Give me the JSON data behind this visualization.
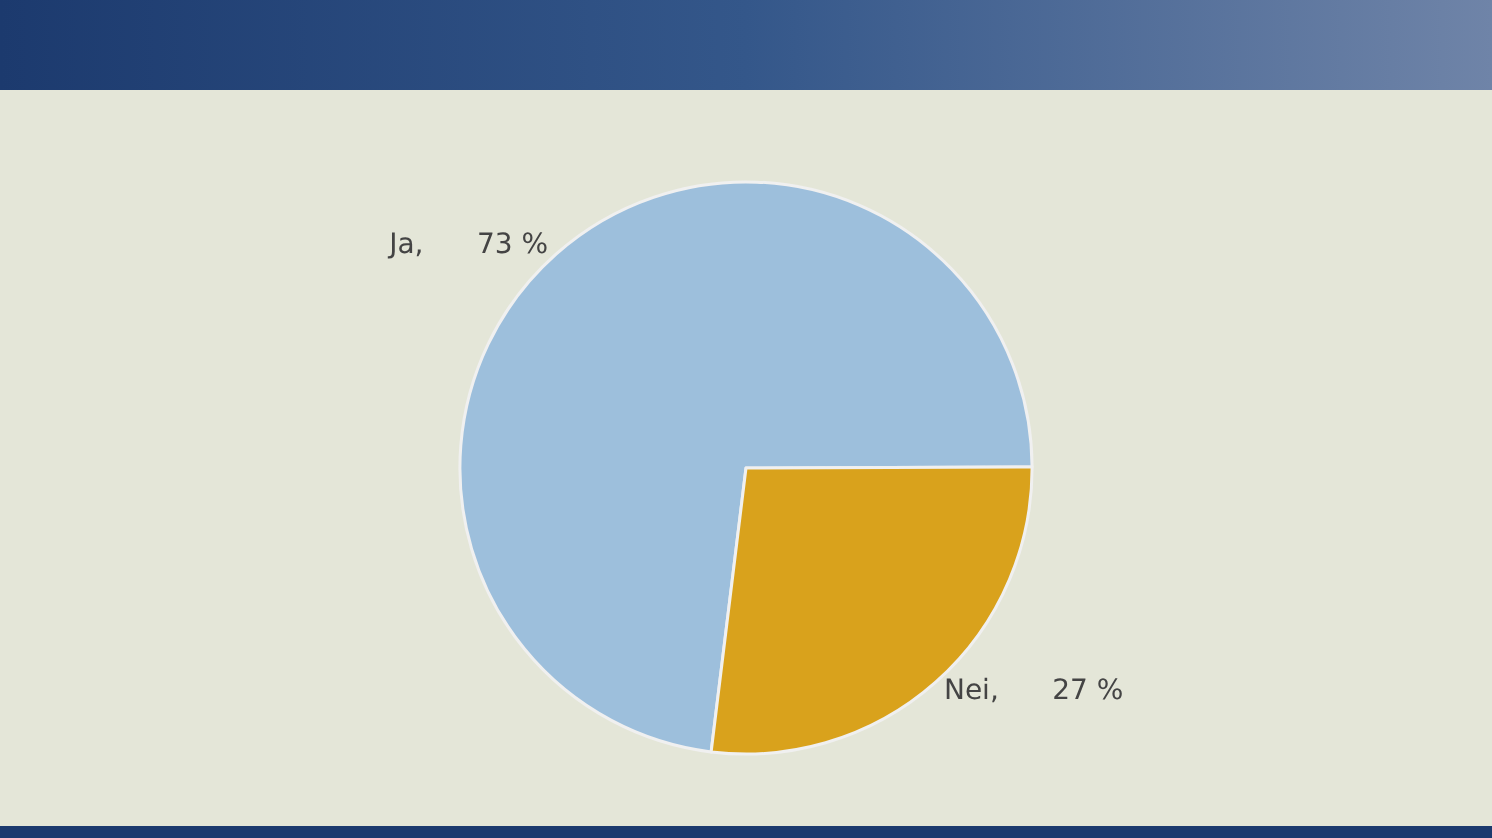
{
  "chart_data": {
    "type": "pie",
    "categories": [
      "Ja",
      "Nei"
    ],
    "values": [
      73,
      27
    ],
    "colors": [
      "#9dbfdc",
      "#d9a21c"
    ],
    "value_labels": [
      "73 %",
      "27 %"
    ]
  }
}
